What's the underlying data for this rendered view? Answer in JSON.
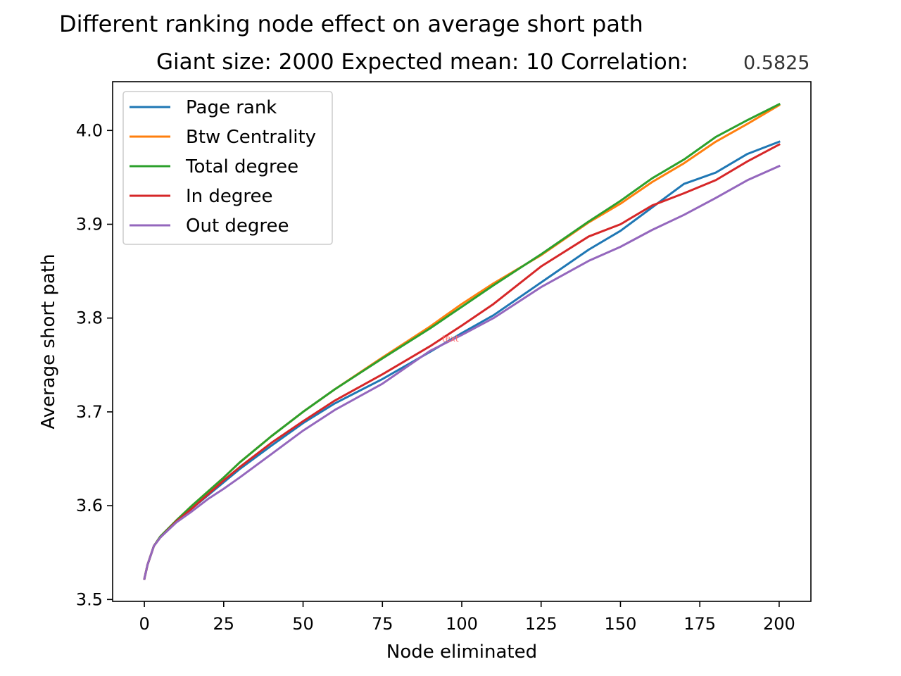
{
  "chart_data": {
    "type": "line",
    "title": "Different ranking node effect on average short path",
    "subtitle_main": "Giant size: 2000  Expected mean: 10  Correlation:",
    "subtitle_value": "0.5825",
    "xlabel": "Node eliminated",
    "ylabel": "Average short path",
    "xlim": [
      -10,
      210
    ],
    "ylim": [
      3.498,
      4.052
    ],
    "x_ticks": [
      0,
      25,
      50,
      75,
      100,
      125,
      150,
      175,
      200
    ],
    "x_tick_labels": [
      "0",
      "25",
      "50",
      "75",
      "100",
      "125",
      "150",
      "175",
      "200"
    ],
    "y_ticks": [
      3.5,
      3.6,
      3.7,
      3.8,
      3.9,
      4.0
    ],
    "y_tick_labels": [
      "3.5",
      "3.6",
      "3.7",
      "3.8",
      "3.9",
      "4.0"
    ],
    "grid": false,
    "legend_position": "top-left",
    "annotation": "text",
    "x": [
      0,
      1,
      3,
      5,
      10,
      15,
      20,
      25,
      30,
      40,
      50,
      60,
      75,
      90,
      100,
      110,
      125,
      140,
      150,
      160,
      170,
      180,
      190,
      200
    ],
    "series": [
      {
        "name": "Page rank",
        "color": "#1f77b4",
        "values": [
          3.522,
          3.537,
          3.557,
          3.566,
          3.583,
          3.597,
          3.611,
          3.625,
          3.639,
          3.664,
          3.688,
          3.709,
          3.735,
          3.764,
          3.784,
          3.803,
          3.838,
          3.873,
          3.893,
          3.918,
          3.943,
          3.955,
          3.975,
          3.988
        ]
      },
      {
        "name": "Btw Centrality",
        "color": "#ff7f0e",
        "values": [
          3.522,
          3.537,
          3.557,
          3.567,
          3.584,
          3.6,
          3.615,
          3.63,
          3.646,
          3.674,
          3.7,
          3.724,
          3.758,
          3.791,
          3.815,
          3.837,
          3.867,
          3.902,
          3.922,
          3.945,
          3.965,
          3.988,
          4.007,
          4.027
        ]
      },
      {
        "name": "Total degree",
        "color": "#2ca02c",
        "values": [
          3.522,
          3.537,
          3.557,
          3.567,
          3.584,
          3.6,
          3.615,
          3.63,
          3.646,
          3.674,
          3.7,
          3.724,
          3.757,
          3.789,
          3.812,
          3.835,
          3.868,
          3.903,
          3.925,
          3.949,
          3.969,
          3.993,
          4.011,
          4.028
        ]
      },
      {
        "name": "In degree",
        "color": "#d62728",
        "values": [
          3.522,
          3.537,
          3.557,
          3.566,
          3.583,
          3.597,
          3.612,
          3.627,
          3.641,
          3.667,
          3.69,
          3.712,
          3.74,
          3.77,
          3.792,
          3.815,
          3.855,
          3.887,
          3.9,
          3.92,
          3.933,
          3.947,
          3.967,
          3.985
        ]
      },
      {
        "name": "Out degree",
        "color": "#9467bd",
        "values": [
          3.522,
          3.537,
          3.557,
          3.566,
          3.582,
          3.594,
          3.607,
          3.618,
          3.63,
          3.655,
          3.68,
          3.702,
          3.73,
          3.765,
          3.782,
          3.8,
          3.833,
          3.861,
          3.876,
          3.894,
          3.91,
          3.928,
          3.947,
          3.962
        ]
      }
    ]
  }
}
